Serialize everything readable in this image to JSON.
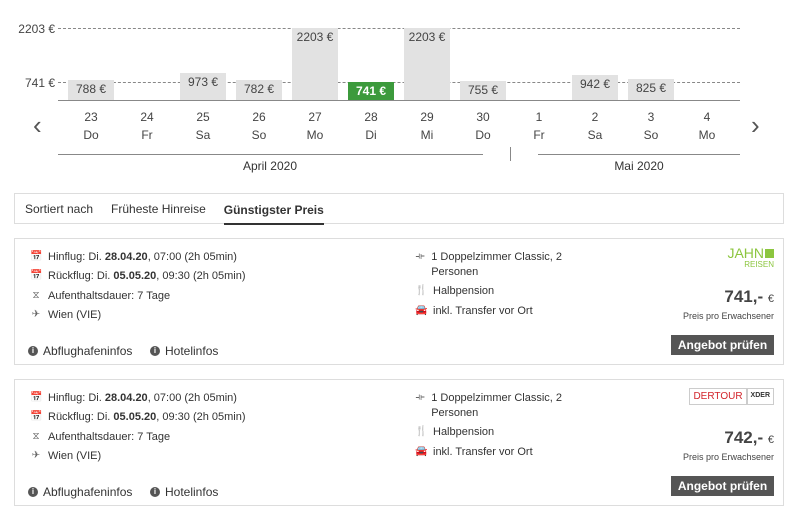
{
  "chart": {
    "y_labels": [
      "2203 €",
      "741 €"
    ],
    "ymin": 741,
    "ymax": 2203,
    "accent": "#3c9a3c",
    "days": [
      {
        "num": "23",
        "wd": "Do",
        "price": 788,
        "label": "788 €"
      },
      {
        "num": "24",
        "wd": "Fr",
        "price": null,
        "label": ""
      },
      {
        "num": "25",
        "wd": "Sa",
        "price": 973,
        "label": "973 €"
      },
      {
        "num": "26",
        "wd": "So",
        "price": 782,
        "label": "782 €"
      },
      {
        "num": "27",
        "wd": "Mo",
        "price": 2203,
        "label": "2203 €"
      },
      {
        "num": "28",
        "wd": "Di",
        "price": 741,
        "label": "741 €",
        "selected": true
      },
      {
        "num": "29",
        "wd": "Mi",
        "price": 2203,
        "label": "2203 €"
      },
      {
        "num": "30",
        "wd": "Do",
        "price": 755,
        "label": "755 €"
      },
      {
        "num": "1",
        "wd": "Fr",
        "price": null,
        "label": ""
      },
      {
        "num": "2",
        "wd": "Sa",
        "price": 942,
        "label": "942 €"
      },
      {
        "num": "3",
        "wd": "So",
        "price": 825,
        "label": "825 €"
      },
      {
        "num": "4",
        "wd": "Mo",
        "price": null,
        "label": ""
      }
    ],
    "months": [
      "April 2020",
      "Mai 2020"
    ]
  },
  "sort": {
    "label": "Sortiert nach",
    "tabs": [
      "Früheste Hinreise",
      "Günstigster Preis"
    ],
    "active": 1
  },
  "offers": [
    {
      "hin_pre": "Hinflug: Di. ",
      "hin_date": "28.04.20",
      "hin_post": ", 07:00 (2h 05min)",
      "rueck_pre": "Rückflug: Di. ",
      "rueck_date": "05.05.20",
      "rueck_post": ", 09:30 (2h 05min)",
      "stay": "Aufenthaltsdauer: 7 Tage",
      "airport": "Wien (VIE)",
      "room": "1 Doppelzimmer Classic, 2 Personen",
      "board": "Halbpension",
      "transfer": "inkl. Transfer vor Ort",
      "operator": "JAHN REISEN",
      "price": "741,-",
      "currency": "€",
      "price_note": "Preis pro Erwachsener",
      "button": "Angebot prüfen",
      "info1": "Abflughafeninfos",
      "info2": "Hotelinfos"
    },
    {
      "hin_pre": "Hinflug: Di. ",
      "hin_date": "28.04.20",
      "hin_post": ", 07:00 (2h 05min)",
      "rueck_pre": "Rückflug: Di. ",
      "rueck_date": "05.05.20",
      "rueck_post": ", 09:30 (2h 05min)",
      "stay": "Aufenthaltsdauer: 7 Tage",
      "airport": "Wien (VIE)",
      "room": "1 Doppelzimmer Classic, 2 Personen",
      "board": "Halbpension",
      "transfer": "inkl. Transfer vor Ort",
      "operator": "DERTOUR XDER",
      "price": "742,-",
      "currency": "€",
      "price_note": "Preis pro Erwachsener",
      "button": "Angebot prüfen",
      "info1": "Abflughafeninfos",
      "info2": "Hotelinfos"
    }
  ]
}
